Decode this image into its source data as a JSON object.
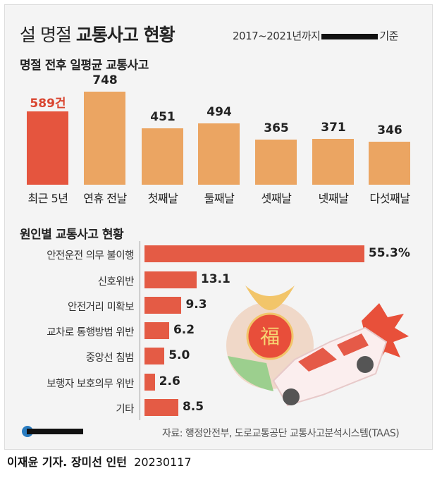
{
  "header": {
    "title_light": "설 명절",
    "title_bold": "교통사고 현황",
    "period": "2017~2021년까지",
    "period_suffix": "기준"
  },
  "colors": {
    "highlight": "#e5553e",
    "bar": "#eba562",
    "hbar": "#e45b45",
    "highlight_text": "#d9442f"
  },
  "chart_data": [
    {
      "type": "bar",
      "title": "명절 전후 일평균 교통사고",
      "categories": [
        "최근 5년",
        "연휴 전날",
        "첫째날",
        "둘째날",
        "셋째날",
        "넷째날",
        "다섯째날"
      ],
      "values": [
        589,
        748,
        451,
        494,
        365,
        371,
        346
      ],
      "data_labels": [
        "589건",
        "748",
        "451",
        "494",
        "365",
        "371",
        "346"
      ],
      "highlight_index": 0,
      "ylim": [
        0,
        750
      ]
    },
    {
      "type": "bar",
      "orientation": "horizontal",
      "title": "원인별 교통사고 현황",
      "categories": [
        "안전운전 의무 불이행",
        "신호위반",
        "안전거리 미확보",
        "교차로 통행방법 위반",
        "중앙선 침범",
        "보행자 보호의무 위반",
        "기타"
      ],
      "values": [
        55.3,
        13.1,
        9.3,
        6.2,
        5.0,
        2.6,
        8.5
      ],
      "data_labels": [
        "55.3%",
        "13.1",
        "9.3",
        "6.2",
        "5.0",
        "2.6",
        "8.5"
      ]
    }
  ],
  "illustration": {
    "bag_char": "福"
  },
  "footer": {
    "source": "자료: 행정안전부, 도로교통공단 교통사고분석시스템(TAAS)",
    "reporter": "이재윤 기자. 장미선 인턴",
    "date": "20230117"
  }
}
